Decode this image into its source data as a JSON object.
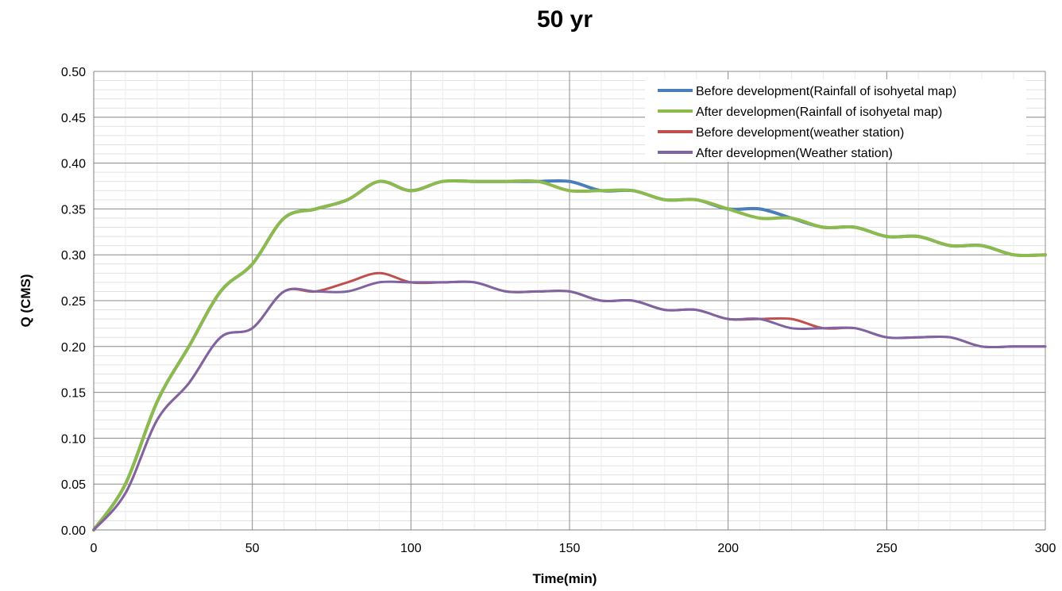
{
  "chart_data": {
    "type": "line",
    "title": "50 yr",
    "xlabel": "Time(min)",
    "ylabel": "Q (CMS)",
    "xlim": [
      0,
      300
    ],
    "ylim": [
      0,
      0.5
    ],
    "x_ticks": [
      "0",
      "50",
      "100",
      "150",
      "200",
      "250",
      "300"
    ],
    "y_ticks": [
      "0.00",
      "0.05",
      "0.10",
      "0.15",
      "0.20",
      "0.25",
      "0.30",
      "0.35",
      "0.40",
      "0.45",
      "0.50"
    ],
    "grid": true,
    "legend_position": "top-right",
    "x": [
      0,
      10,
      20,
      30,
      40,
      50,
      60,
      70,
      80,
      90,
      100,
      110,
      120,
      130,
      140,
      150,
      160,
      170,
      180,
      190,
      200,
      210,
      220,
      230,
      240,
      250,
      260,
      270,
      280,
      290,
      300
    ],
    "series": [
      {
        "name": "Before development(Rainfall of isohyetal map)",
        "color": "#4a7ebb",
        "values": [
          0.0,
          0.05,
          0.14,
          0.2,
          0.26,
          0.29,
          0.34,
          0.35,
          0.36,
          0.38,
          0.37,
          0.38,
          0.38,
          0.38,
          0.38,
          0.38,
          0.37,
          0.37,
          0.36,
          0.36,
          0.35,
          0.35,
          0.34,
          0.33,
          0.33,
          0.32,
          0.32,
          0.31,
          0.31,
          0.3,
          0.3
        ]
      },
      {
        "name": "After developmen(Rainfall of isohyetal map)",
        "color": "#8cba4c",
        "values": [
          0.0,
          0.05,
          0.14,
          0.2,
          0.26,
          0.29,
          0.34,
          0.35,
          0.36,
          0.38,
          0.37,
          0.38,
          0.38,
          0.38,
          0.38,
          0.37,
          0.37,
          0.37,
          0.36,
          0.36,
          0.35,
          0.34,
          0.34,
          0.33,
          0.33,
          0.32,
          0.32,
          0.31,
          0.31,
          0.3,
          0.3
        ]
      },
      {
        "name": "Before development(weather station)",
        "color": "#c0504d",
        "values": [
          0.0,
          0.04,
          0.12,
          0.16,
          0.21,
          0.22,
          0.26,
          0.26,
          0.27,
          0.28,
          0.27,
          0.27,
          0.27,
          0.26,
          0.26,
          0.26,
          0.25,
          0.25,
          0.24,
          0.24,
          0.23,
          0.23,
          0.23,
          0.22,
          0.22,
          0.21,
          0.21,
          0.21,
          0.2,
          0.2,
          0.2
        ]
      },
      {
        "name": "After developmen(Weather station)",
        "color": "#8064a2",
        "values": [
          0.0,
          0.04,
          0.12,
          0.16,
          0.21,
          0.22,
          0.26,
          0.26,
          0.26,
          0.27,
          0.27,
          0.27,
          0.27,
          0.26,
          0.26,
          0.26,
          0.25,
          0.25,
          0.24,
          0.24,
          0.23,
          0.23,
          0.22,
          0.22,
          0.22,
          0.21,
          0.21,
          0.21,
          0.2,
          0.2,
          0.2
        ]
      }
    ]
  }
}
